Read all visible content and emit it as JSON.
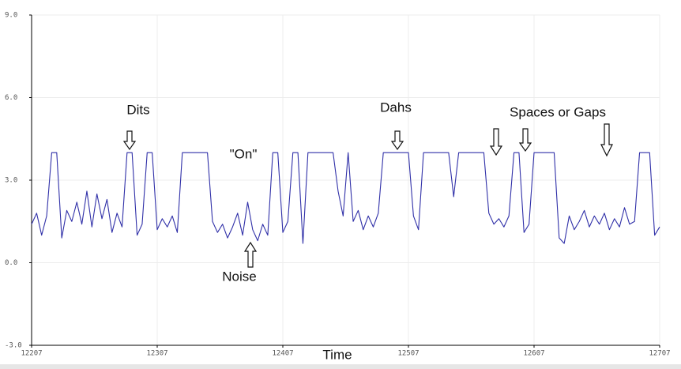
{
  "chart_data": {
    "type": "line",
    "x_label": "Time",
    "annotations": [
      "Dits",
      "\"On\"",
      "Noise",
      "Dahs",
      "Spaces or Gaps"
    ],
    "x": [
      12207,
      12211,
      12215,
      12219,
      12223,
      12227,
      12231,
      12235,
      12239,
      12243,
      12247,
      12251,
      12255,
      12259,
      12263,
      12267,
      12271,
      12275,
      12279,
      12283,
      12287,
      12291,
      12295,
      12299,
      12303,
      12307,
      12311,
      12315,
      12319,
      12323,
      12327,
      12331,
      12335,
      12339,
      12343,
      12347,
      12351,
      12355,
      12359,
      12363,
      12367,
      12371,
      12375,
      12379,
      12383,
      12387,
      12391,
      12395,
      12399,
      12403,
      12407,
      12411,
      12415,
      12419,
      12423,
      12427,
      12431,
      12435,
      12439,
      12443,
      12447,
      12451,
      12455,
      12459,
      12463,
      12467,
      12471,
      12475,
      12479,
      12483,
      12487,
      12491,
      12495,
      12499,
      12503,
      12507,
      12511,
      12515,
      12519,
      12523,
      12527,
      12531,
      12535,
      12539,
      12543,
      12547,
      12551,
      12555,
      12559,
      12563,
      12567,
      12571,
      12575,
      12579,
      12583,
      12587,
      12591,
      12595,
      12599,
      12603,
      12607,
      12611,
      12615,
      12619,
      12623,
      12627,
      12631,
      12635,
      12639,
      12643,
      12647,
      12651,
      12655,
      12659,
      12663,
      12667,
      12671,
      12675,
      12679,
      12683,
      12687,
      12691,
      12695,
      12699,
      12703,
      12707
    ],
    "series": [
      {
        "color": "#3030a8",
        "values": [
          1.4,
          1.8,
          1.0,
          1.7,
          4,
          4,
          0.9,
          1.9,
          1.5,
          2.2,
          1.4,
          2.6,
          1.3,
          2.5,
          1.6,
          2.3,
          1.1,
          1.8,
          1.3,
          4,
          4,
          1.0,
          1.4,
          4,
          4,
          1.2,
          1.6,
          1.3,
          1.7,
          1.1,
          4,
          4,
          4,
          4,
          4,
          4,
          1.5,
          1.1,
          1.4,
          0.9,
          1.3,
          1.8,
          1.0,
          2.2,
          1.2,
          0.8,
          1.4,
          1.0,
          4,
          4,
          1.1,
          1.5,
          4,
          4,
          0.7,
          4,
          4,
          4,
          4,
          4,
          4,
          2.6,
          1.7,
          4,
          1.5,
          1.9,
          1.2,
          1.7,
          1.3,
          1.8,
          4,
          4,
          4,
          4,
          4,
          4,
          1.7,
          1.2,
          4,
          4,
          4,
          4,
          4,
          4,
          2.4,
          4,
          4,
          4,
          4,
          4,
          4,
          1.8,
          1.4,
          1.6,
          1.3,
          1.7,
          4,
          4,
          1.1,
          1.4,
          4,
          4,
          4,
          4,
          4,
          0.9,
          0.7,
          1.7,
          1.2,
          1.5,
          1.9,
          1.3,
          1.7,
          1.4,
          1.8,
          1.2,
          1.6,
          1.3,
          2.0,
          1.4,
          1.5,
          4,
          4,
          4,
          1.0,
          1.3
        ]
      }
    ],
    "xlim": [
      12207,
      12707
    ],
    "xticks": [
      12207,
      12307,
      12407,
      12507,
      12607,
      12707
    ],
    "ylim": [
      -3,
      9
    ],
    "yticks": [
      {
        "value": -3,
        "label": "-3.0"
      },
      {
        "value": 0,
        "label": "0.0"
      },
      {
        "value": 3,
        "label": "3.0"
      },
      {
        "value": 6,
        "label": "6.0"
      },
      {
        "value": 9,
        "label": "9.0"
      }
    ],
    "grid": true
  }
}
